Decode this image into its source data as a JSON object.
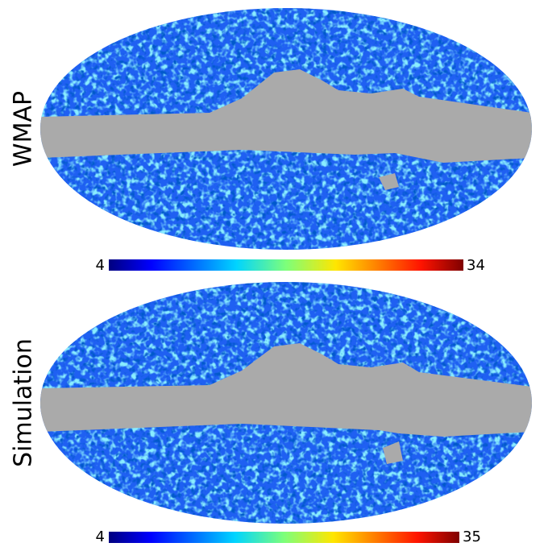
{
  "panels": [
    {
      "label": "WMAP",
      "colorbar": {
        "min": 4,
        "max": 34
      }
    },
    {
      "label": "Simulation",
      "colorbar": {
        "min": 4,
        "max": 35
      }
    }
  ]
}
